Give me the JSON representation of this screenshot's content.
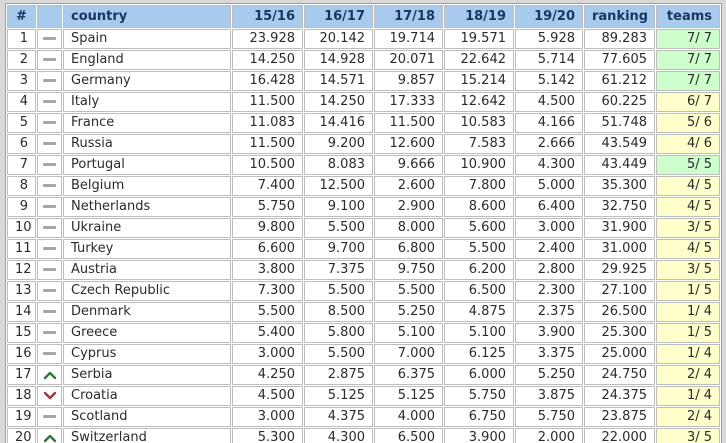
{
  "table": {
    "headers": [
      "#",
      "",
      "country",
      "15/16",
      "16/17",
      "17/18",
      "18/19",
      "19/20",
      "ranking",
      "teams"
    ],
    "rows": [
      {
        "rank": "1",
        "movement": "same",
        "country": "Spain",
        "seasons": [
          "23.928",
          "20.142",
          "19.714",
          "19.571",
          "5.928"
        ],
        "ranking": "89.283",
        "teams": "7/ 7",
        "teams_full": true
      },
      {
        "rank": "2",
        "movement": "same",
        "country": "England",
        "seasons": [
          "14.250",
          "14.928",
          "20.071",
          "22.642",
          "5.714"
        ],
        "ranking": "77.605",
        "teams": "7/ 7",
        "teams_full": true
      },
      {
        "rank": "3",
        "movement": "same",
        "country": "Germany",
        "seasons": [
          "16.428",
          "14.571",
          "9.857",
          "15.214",
          "5.142"
        ],
        "ranking": "61.212",
        "teams": "7/ 7",
        "teams_full": true
      },
      {
        "rank": "4",
        "movement": "same",
        "country": "Italy",
        "seasons": [
          "11.500",
          "14.250",
          "17.333",
          "12.642",
          "4.500"
        ],
        "ranking": "60.225",
        "teams": "6/ 7",
        "teams_full": false
      },
      {
        "rank": "5",
        "movement": "same",
        "country": "France",
        "seasons": [
          "11.083",
          "14.416",
          "11.500",
          "10.583",
          "4.166"
        ],
        "ranking": "51.748",
        "teams": "5/ 6",
        "teams_full": false
      },
      {
        "rank": "6",
        "movement": "same",
        "country": "Russia",
        "seasons": [
          "11.500",
          "9.200",
          "12.600",
          "7.583",
          "2.666"
        ],
        "ranking": "43.549",
        "teams": "4/ 6",
        "teams_full": false
      },
      {
        "rank": "7",
        "movement": "same",
        "country": "Portugal",
        "seasons": [
          "10.500",
          "8.083",
          "9.666",
          "10.900",
          "4.300"
        ],
        "ranking": "43.449",
        "teams": "5/ 5",
        "teams_full": true
      },
      {
        "rank": "8",
        "movement": "same",
        "country": "Belgium",
        "seasons": [
          "7.400",
          "12.500",
          "2.600",
          "7.800",
          "5.000"
        ],
        "ranking": "35.300",
        "teams": "4/ 5",
        "teams_full": false
      },
      {
        "rank": "9",
        "movement": "same",
        "country": "Netherlands",
        "seasons": [
          "5.750",
          "9.100",
          "2.900",
          "8.600",
          "6.400"
        ],
        "ranking": "32.750",
        "teams": "4/ 5",
        "teams_full": false
      },
      {
        "rank": "10",
        "movement": "same",
        "country": "Ukraine",
        "seasons": [
          "9.800",
          "5.500",
          "8.000",
          "5.600",
          "3.000"
        ],
        "ranking": "31.900",
        "teams": "3/ 5",
        "teams_full": false
      },
      {
        "rank": "11",
        "movement": "same",
        "country": "Turkey",
        "seasons": [
          "6.600",
          "9.700",
          "6.800",
          "5.500",
          "2.400"
        ],
        "ranking": "31.000",
        "teams": "4/ 5",
        "teams_full": false
      },
      {
        "rank": "12",
        "movement": "same",
        "country": "Austria",
        "seasons": [
          "3.800",
          "7.375",
          "9.750",
          "6.200",
          "2.800"
        ],
        "ranking": "29.925",
        "teams": "3/ 5",
        "teams_full": false
      },
      {
        "rank": "13",
        "movement": "same",
        "country": "Czech Republic",
        "seasons": [
          "7.300",
          "5.500",
          "5.500",
          "6.500",
          "2.300"
        ],
        "ranking": "27.100",
        "teams": "1/ 5",
        "teams_full": false
      },
      {
        "rank": "14",
        "movement": "same",
        "country": "Denmark",
        "seasons": [
          "5.500",
          "8.500",
          "5.250",
          "4.875",
          "2.375"
        ],
        "ranking": "26.500",
        "teams": "1/ 4",
        "teams_full": false
      },
      {
        "rank": "15",
        "movement": "same",
        "country": "Greece",
        "seasons": [
          "5.400",
          "5.800",
          "5.100",
          "5.100",
          "3.900"
        ],
        "ranking": "25.300",
        "teams": "1/ 5",
        "teams_full": false
      },
      {
        "rank": "16",
        "movement": "same",
        "country": "Cyprus",
        "seasons": [
          "3.000",
          "5.500",
          "7.000",
          "6.125",
          "3.375"
        ],
        "ranking": "25.000",
        "teams": "1/ 4",
        "teams_full": false
      },
      {
        "rank": "17",
        "movement": "up",
        "country": "Serbia",
        "seasons": [
          "4.250",
          "2.875",
          "6.375",
          "6.000",
          "5.250"
        ],
        "ranking": "24.750",
        "teams": "2/ 4",
        "teams_full": false
      },
      {
        "rank": "18",
        "movement": "down",
        "country": "Croatia",
        "seasons": [
          "4.500",
          "5.125",
          "5.125",
          "5.750",
          "3.875"
        ],
        "ranking": "24.375",
        "teams": "1/ 4",
        "teams_full": false
      },
      {
        "rank": "19",
        "movement": "same",
        "country": "Scotland",
        "seasons": [
          "3.000",
          "4.375",
          "4.000",
          "6.750",
          "5.750"
        ],
        "ranking": "23.875",
        "teams": "2/ 4",
        "teams_full": false
      },
      {
        "rank": "20",
        "movement": "up",
        "country": "Switzerland",
        "seasons": [
          "5.300",
          "4.300",
          "6.500",
          "3.900",
          "2.000"
        ],
        "ranking": "22.000",
        "teams": "3/ 5",
        "teams_full": false
      }
    ]
  },
  "colors": {
    "header_bg": "#a8caec",
    "header_text": "#17375d",
    "teams_full_bg": "#ccffcc",
    "teams_partial_bg": "#ffffcc",
    "movement_up": "#2f7a33",
    "movement_down": "#a23535",
    "movement_same": "#a6a6a6",
    "cell_border": "#bdbdbd"
  }
}
